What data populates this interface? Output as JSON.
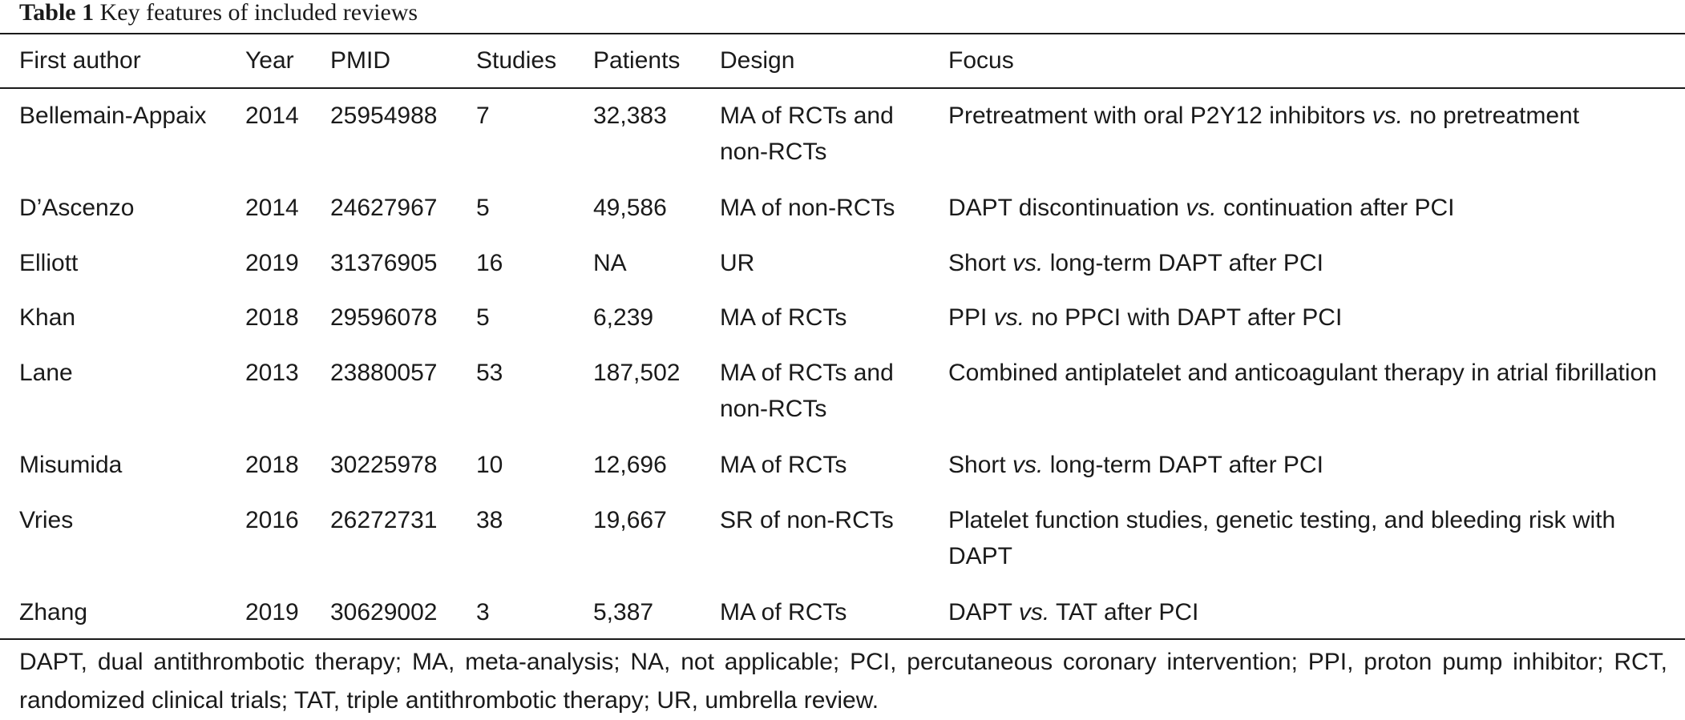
{
  "caption": {
    "label": "Table 1",
    "title": "Key features of included reviews"
  },
  "table": {
    "headers": [
      "First author",
      "Year",
      "PMID",
      "Studies",
      "Patients",
      "Design",
      "Focus"
    ],
    "rows": [
      {
        "author": "Bellemain-Appaix",
        "year": "2014",
        "pmid": "25954988",
        "studies": "7",
        "patients": "32,383",
        "design": "MA of RCTs and non-RCTs",
        "focus": [
          "Pretreatment with oral P2Y12 inhibitors ",
          "vs.",
          " no pretreatment"
        ]
      },
      {
        "author": "D’Ascenzo",
        "year": "2014",
        "pmid": "24627967",
        "studies": "5",
        "patients": "49,586",
        "design": "MA of non-RCTs",
        "focus": [
          "DAPT discontinuation ",
          "vs.",
          " continuation after PCI"
        ]
      },
      {
        "author": "Elliott",
        "year": "2019",
        "pmid": "31376905",
        "studies": "16",
        "patients": "NA",
        "design": "UR",
        "focus": [
          "Short ",
          "vs.",
          " long-term DAPT after PCI"
        ]
      },
      {
        "author": "Khan",
        "year": "2018",
        "pmid": "29596078",
        "studies": "5",
        "patients": "6,239",
        "design": "MA of RCTs",
        "focus": [
          "PPI ",
          "vs.",
          " no PPCI with DAPT after PCI"
        ]
      },
      {
        "author": "Lane",
        "year": "2013",
        "pmid": "23880057",
        "studies": "53",
        "patients": "187,502",
        "design": "MA of RCTs and non-RCTs",
        "focus": [
          "Combined antiplatelet and anticoagulant therapy in atrial fibrillation",
          "",
          ""
        ]
      },
      {
        "author": "Misumida",
        "year": "2018",
        "pmid": "30225978",
        "studies": "10",
        "patients": "12,696",
        "design": "MA of RCTs",
        "focus": [
          "Short ",
          "vs.",
          " long-term DAPT after PCI"
        ]
      },
      {
        "author": "Vries",
        "year": "2016",
        "pmid": "26272731",
        "studies": "38",
        "patients": "19,667",
        "design": "SR of non-RCTs",
        "focus": [
          "Platelet function studies, genetic testing, and bleeding risk with DAPT",
          "",
          ""
        ]
      },
      {
        "author": "Zhang",
        "year": "2019",
        "pmid": "30629002",
        "studies": "3",
        "patients": "5,387",
        "design": "MA of RCTs",
        "focus": [
          "DAPT ",
          "vs.",
          " TAT after PCI"
        ]
      }
    ]
  },
  "footnote": "DAPT, dual antithrombotic therapy; MA, meta-analysis; NA, not applicable; PCI, percutaneous coronary intervention; PPI, proton pump inhibitor; RCT, randomized clinical trials; TAT, triple antithrombotic therapy; UR, umbrella review."
}
